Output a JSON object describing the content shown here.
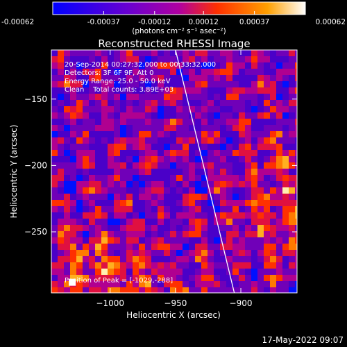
{
  "chart_data": {
    "type": "heatmap",
    "title": "Reconstructed RHESSI Image",
    "xlabel": "Heliocentric X (arcsec)",
    "ylabel": "Heliocentric Y (arcsec)",
    "xlim": [
      -1045,
      -857
    ],
    "ylim": [
      -296,
      -113
    ],
    "x_ticks": [
      -1000,
      -950,
      -900
    ],
    "x_tick_labels": [
      "−1000",
      "−950",
      "−900"
    ],
    "y_ticks": [
      -150,
      -200,
      -250
    ],
    "y_tick_labels": [
      "−150",
      "−200",
      "−250"
    ],
    "colorbar": {
      "range": [
        -0.00062,
        0.00062
      ],
      "ticks": [
        -0.00062,
        -0.00037,
        -0.00012,
        0.00012,
        0.00037,
        0.00062
      ],
      "tick_labels": [
        "-0.00062",
        "-0.00037",
        "-0.00012",
        "0.00012",
        "0.00037",
        "0.00062"
      ],
      "units_label": "(photons cm⁻² s⁻¹ asec⁻²)",
      "colors": [
        "#0000ff",
        "#6a00d0",
        "#b000a0",
        "#ff3000",
        "#ffa000",
        "#ffffff"
      ]
    },
    "annotations": [
      "20-Sep-2014 00:27:32.000 to 00:33:32.000",
      "Detectors: 3F 6F 9F, Att 0",
      "Energy Range: 25.0 - 50.0 keV",
      "Clean    Total counts: 3.89E+03"
    ],
    "peak_label": "Position of Peak = [-1029,-288]",
    "peak": [
      -1029,
      -288
    ],
    "limb_line": [
      [
        -950,
        -113
      ],
      [
        -905,
        -296
      ]
    ]
  },
  "footer": {
    "timestamp": "17-May-2022 09:07"
  }
}
